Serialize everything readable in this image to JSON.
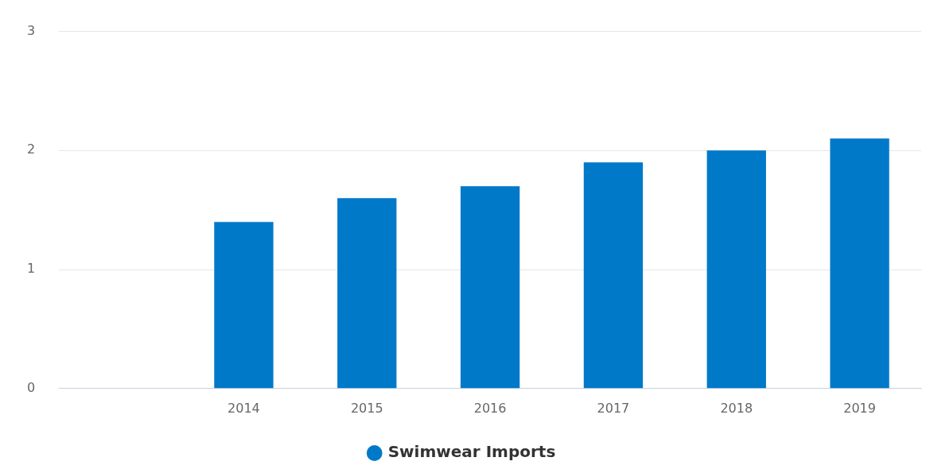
{
  "chart_data": {
    "type": "bar",
    "categories": [
      null,
      "2014",
      "2015",
      "2016",
      "2017",
      "2018",
      "2019"
    ],
    "series": [
      {
        "name": "Swimwear Imports",
        "color": "#0079c9",
        "values": [
          null,
          1.4,
          1.6,
          1.7,
          1.9,
          2.0,
          2.1
        ]
      }
    ],
    "ylim": [
      0,
      3
    ],
    "yticks": [
      0,
      1,
      2,
      3
    ],
    "grid": "y",
    "legend": "bottom"
  }
}
